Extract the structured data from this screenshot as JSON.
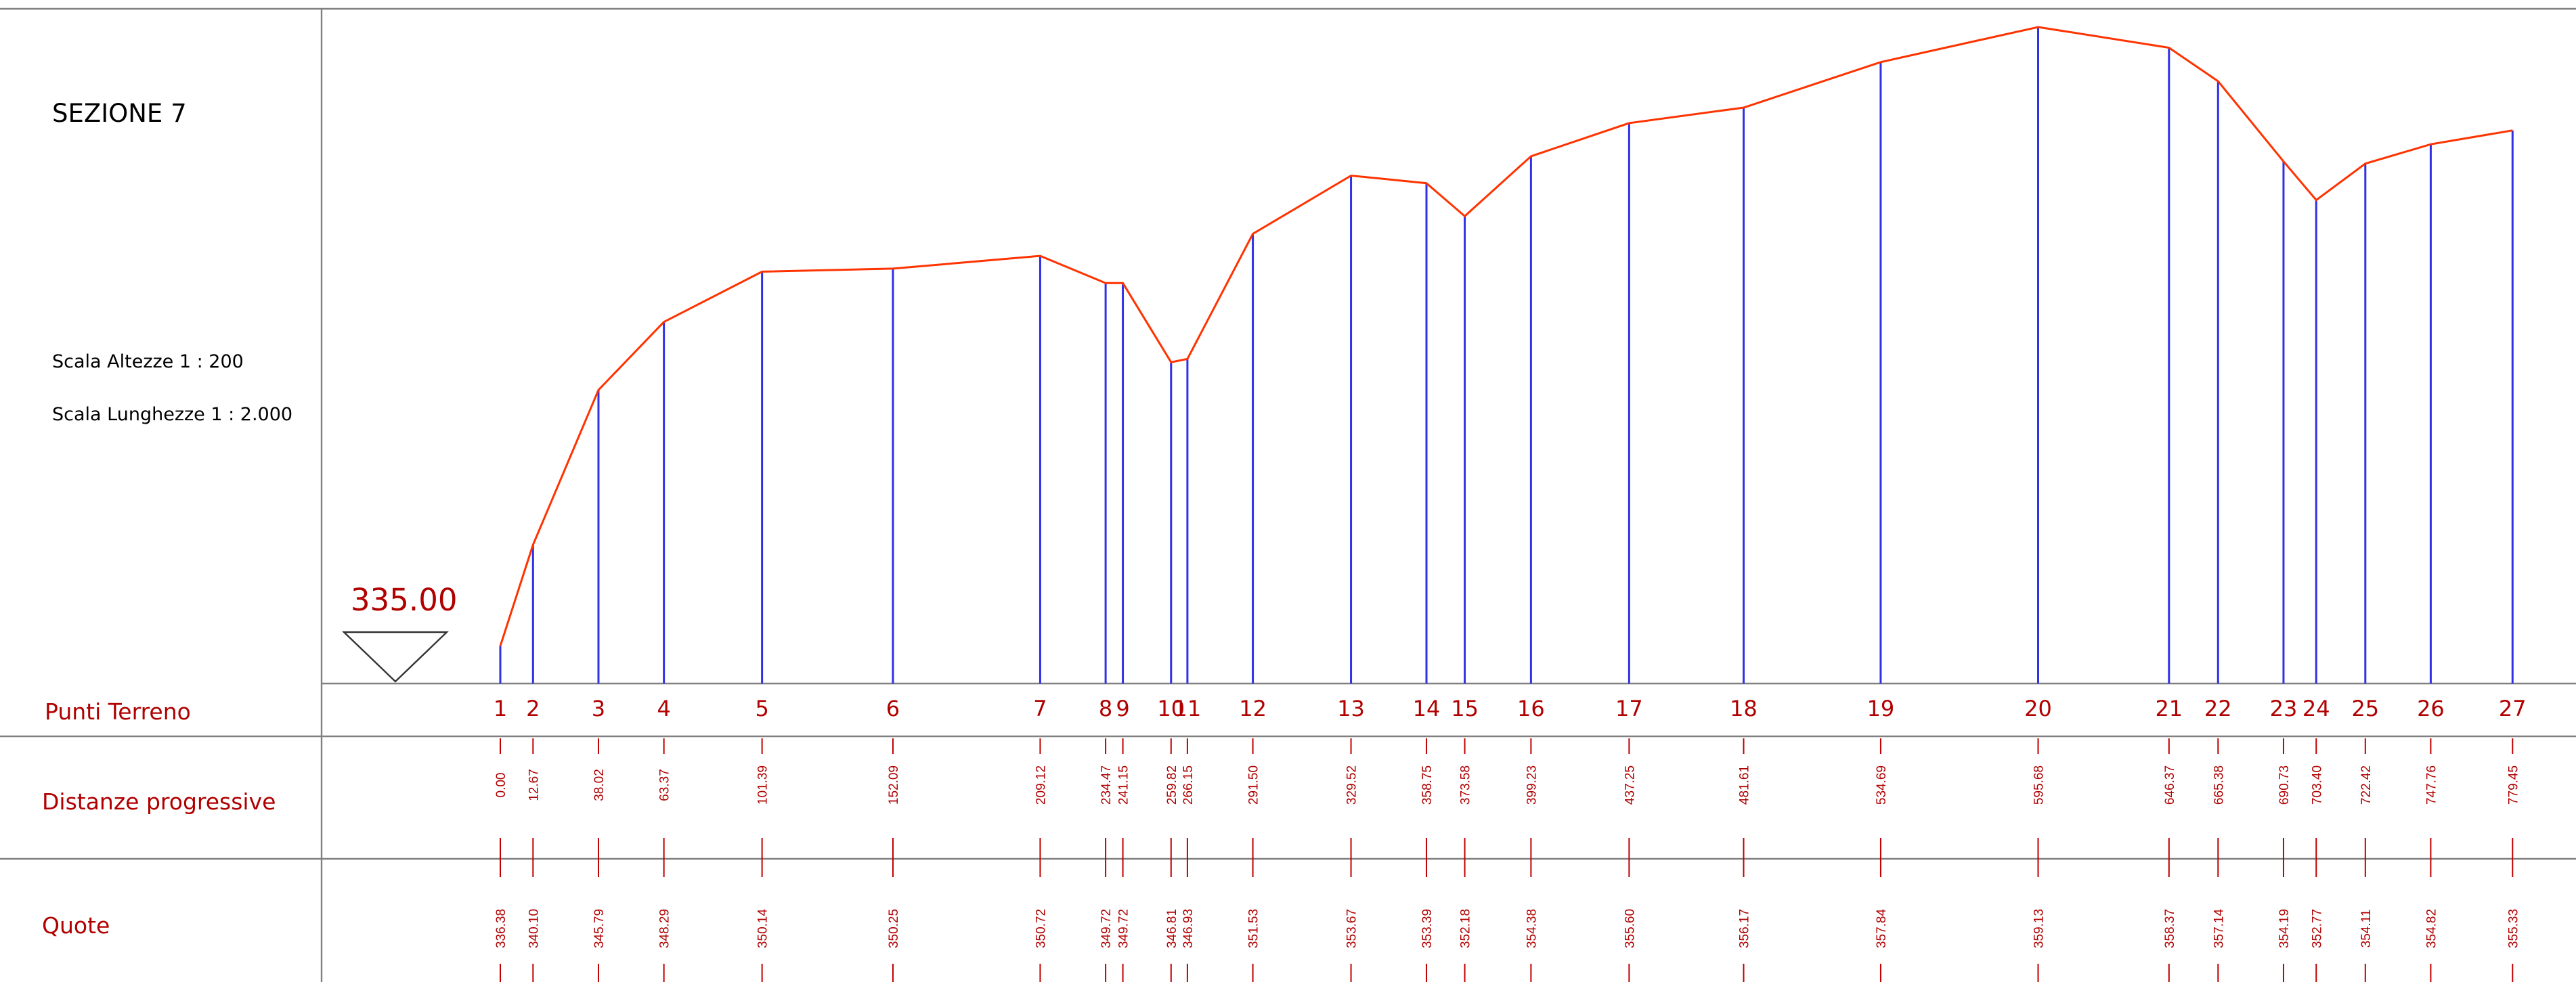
{
  "title": "SEZIONE 7",
  "scale_heights": "Scala Altezze 1 : 200",
  "scale_lengths": "Scala Lunghezze 1 : 2.000",
  "datum_label": "335.00",
  "rows": {
    "points": "Punti Terreno",
    "distances": "Distanze progressive",
    "elevations": "Quote"
  },
  "colors": {
    "profile": "#ff3300",
    "verticals": "#3030e8",
    "labels": "#b00000"
  },
  "chart_data": {
    "type": "line",
    "datum": 335.0,
    "vertical_scale": "1:200",
    "horizontal_scale": "1:2.000",
    "points": [
      {
        "id": "1",
        "distance": "0.00",
        "elevation": "336.38"
      },
      {
        "id": "2",
        "distance": "12.67",
        "elevation": "340.10"
      },
      {
        "id": "3",
        "distance": "38.02",
        "elevation": "345.79"
      },
      {
        "id": "4",
        "distance": "63.37",
        "elevation": "348.29"
      },
      {
        "id": "5",
        "distance": "101.39",
        "elevation": "350.14"
      },
      {
        "id": "6",
        "distance": "152.09",
        "elevation": "350.25"
      },
      {
        "id": "7",
        "distance": "209.12",
        "elevation": "350.72"
      },
      {
        "id": "8",
        "distance": "234.47",
        "elevation": "349.72"
      },
      {
        "id": "9",
        "distance": "241.15",
        "elevation": "349.72"
      },
      {
        "id": "10",
        "distance": "259.82",
        "elevation": "346.81"
      },
      {
        "id": "11",
        "distance": "266.15",
        "elevation": "346.93"
      },
      {
        "id": "12",
        "distance": "291.50",
        "elevation": "351.53"
      },
      {
        "id": "13",
        "distance": "329.52",
        "elevation": "353.67"
      },
      {
        "id": "14",
        "distance": "358.75",
        "elevation": "353.39"
      },
      {
        "id": "15",
        "distance": "373.58",
        "elevation": "352.18"
      },
      {
        "id": "16",
        "distance": "399.23",
        "elevation": "354.38"
      },
      {
        "id": "17",
        "distance": "437.25",
        "elevation": "355.60"
      },
      {
        "id": "18",
        "distance": "481.61",
        "elevation": "356.17"
      },
      {
        "id": "19",
        "distance": "534.69",
        "elevation": "357.84"
      },
      {
        "id": "20",
        "distance": "595.68",
        "elevation": "359.13"
      },
      {
        "id": "21",
        "distance": "646.37",
        "elevation": "358.37"
      },
      {
        "id": "22",
        "distance": "665.38",
        "elevation": "357.14"
      },
      {
        "id": "23",
        "distance": "690.73",
        "elevation": "354.19"
      },
      {
        "id": "24",
        "distance": "703.40",
        "elevation": "352.77"
      },
      {
        "id": "25",
        "distance": "722.42",
        "elevation": "354.11"
      },
      {
        "id": "26",
        "distance": "747.76",
        "elevation": "354.82"
      },
      {
        "id": "27",
        "distance": "779.45",
        "elevation": "355.33"
      }
    ]
  }
}
